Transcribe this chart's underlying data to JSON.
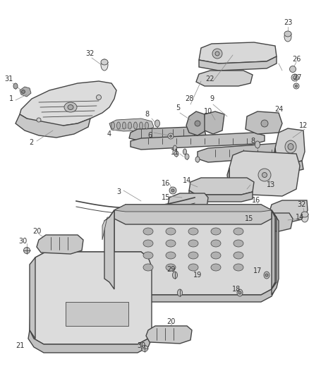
{
  "bg_color": "#ffffff",
  "line_color": "#444444",
  "label_color": "#333333",
  "figsize": [
    4.38,
    5.33
  ],
  "dpi": 100,
  "lw_main": 1.0,
  "lw_thin": 0.6,
  "label_fontsize": 7.0
}
